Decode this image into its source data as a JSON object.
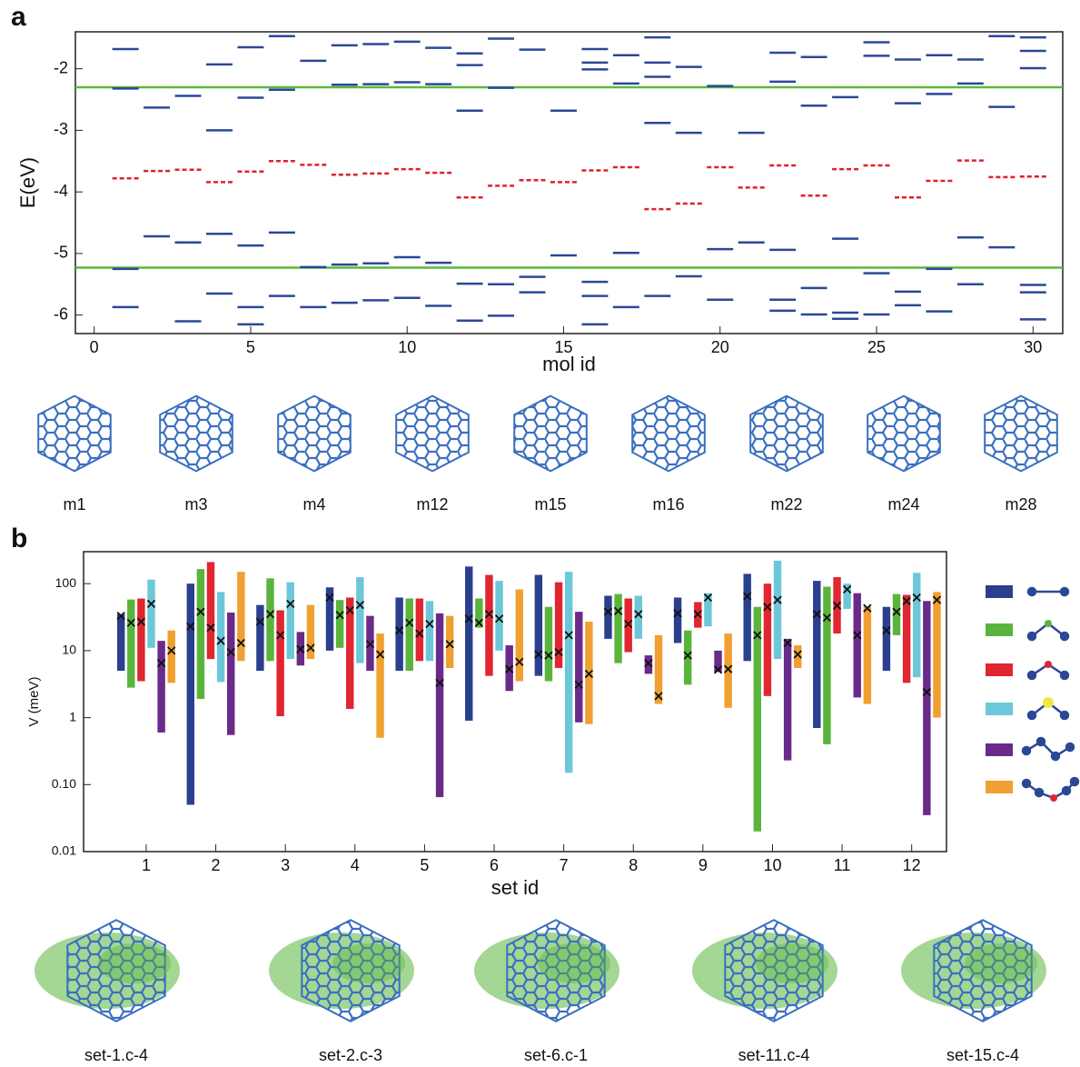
{
  "panel_labels": [
    "a",
    "b"
  ],
  "chart_data": [
    {
      "type": "levels",
      "xlabel": "mol id",
      "ylabel": "E(eV)",
      "x": [
        1,
        2,
        3,
        4,
        5,
        6,
        7,
        8,
        9,
        10,
        11,
        12,
        13,
        14,
        15,
        16,
        17,
        18,
        19,
        20,
        21,
        22,
        23,
        24,
        25,
        26,
        27,
        28,
        29,
        30
      ],
      "levels": [
        [
          -1.68,
          -2.32,
          -5.25,
          -5.87
        ],
        [
          -2.63,
          -4.72
        ],
        [
          -2.44,
          -4.82,
          -6.1
        ],
        [
          -1.93,
          -3.0,
          -4.68,
          -5.65
        ],
        [
          -1.65,
          -2.47,
          -4.87,
          -5.87,
          -6.15
        ],
        [
          -1.47,
          -2.34,
          -4.66,
          -5.69
        ],
        [
          -1.87,
          -5.22,
          -5.87
        ],
        [
          -1.62,
          -2.26,
          -5.18,
          -5.8
        ],
        [
          -1.6,
          -2.25,
          -5.16,
          -5.76
        ],
        [
          -1.56,
          -2.22,
          -5.06,
          -5.72
        ],
        [
          -1.66,
          -2.25,
          -5.15,
          -5.85
        ],
        [
          -1.75,
          -1.94,
          -2.68,
          -5.49,
          -6.09
        ],
        [
          -1.51,
          -2.31,
          -5.5,
          -6.01
        ],
        [
          -1.69,
          -5.38,
          -5.63
        ],
        [
          -2.68,
          -5.03
        ],
        [
          -1.68,
          -1.9,
          -2.01,
          -5.46,
          -5.69,
          -6.15
        ],
        [
          -1.78,
          -2.24,
          -4.99,
          -5.87
        ],
        [
          -1.49,
          -1.9,
          -2.13,
          -2.88,
          -5.69
        ],
        [
          -1.97,
          -3.04,
          -5.37
        ],
        [
          -2.28,
          -4.93,
          -5.75
        ],
        [
          -3.04,
          -4.82
        ],
        [
          -1.74,
          -2.21,
          -4.94,
          -5.75,
          -5.93
        ],
        [
          -1.81,
          -2.6,
          -5.56,
          -5.99
        ],
        [
          -2.46,
          -4.76,
          -5.96,
          -6.06
        ],
        [
          -1.57,
          -1.79,
          -5.32,
          -5.99
        ],
        [
          -1.85,
          -2.56,
          -5.62,
          -5.84
        ],
        [
          -1.78,
          -2.41,
          -5.25,
          -5.94
        ],
        [
          -1.85,
          -2.24,
          -4.74,
          -5.5
        ],
        [
          -1.47,
          -2.62,
          -4.9
        ],
        [
          -1.49,
          -1.71,
          -1.99,
          -5.51,
          -5.63,
          -6.07
        ]
      ],
      "levels_color": "#2b4896",
      "midgap": [
        -3.78,
        -3.66,
        -3.64,
        -3.84,
        -3.67,
        -3.5,
        -3.56,
        -3.72,
        -3.7,
        -3.63,
        -3.69,
        -4.09,
        -3.9,
        -3.81,
        -3.84,
        -3.65,
        -3.6,
        -4.28,
        -4.19,
        -3.6,
        -3.93,
        -3.57,
        -4.06,
        -3.63,
        -3.57,
        -4.09,
        -3.82,
        -3.49,
        -3.76,
        -3.75
      ],
      "midgap_color": "#e0202a",
      "hlines": [
        -2.3,
        -5.23
      ],
      "hline_color": "#5cb83c",
      "xlim": [
        -0.6,
        30.95
      ],
      "xticks": [
        0,
        5,
        10,
        15,
        20,
        25,
        30
      ],
      "ylim": [
        -6.3,
        -1.4
      ],
      "yticks": [
        -6,
        -5,
        -4,
        -3,
        -2
      ]
    },
    {
      "type": "range-bar",
      "xlabel": "set id",
      "ylabel": "V (meV)",
      "log_y": true,
      "x": [
        1,
        2,
        3,
        4,
        5,
        6,
        7,
        8,
        9,
        10,
        11,
        12
      ],
      "series": [
        {
          "color": "#2b3f8f",
          "low": [
            5,
            0.05,
            5,
            10,
            5,
            0.9,
            4.2,
            15,
            13,
            7,
            0.7,
            5
          ],
          "high": [
            35,
            100,
            48,
            88,
            62,
            180,
            135,
            66,
            62,
            140,
            110,
            45
          ],
          "values": [
            33,
            23,
            27,
            62,
            20,
            30,
            8.8,
            38,
            36,
            65,
            35,
            20
          ]
        },
        {
          "color": "#5ab43c",
          "low": [
            2.8,
            1.9,
            7,
            11,
            5,
            22,
            3.5,
            6.5,
            3.1,
            0.02,
            0.4,
            17
          ],
          "high": [
            58,
            165,
            120,
            57,
            60,
            60,
            45,
            70,
            20,
            45,
            90,
            70
          ],
          "values": [
            26,
            38,
            35,
            34,
            26,
            26,
            8.5,
            39,
            8.5,
            17,
            31,
            38
          ]
        },
        {
          "color": "#e02630",
          "low": [
            3.5,
            7.5,
            1.05,
            1.35,
            7,
            4.2,
            5.5,
            9.5,
            22,
            2.1,
            18,
            3.3
          ],
          "high": [
            60,
            210,
            40,
            62,
            60,
            135,
            105,
            60,
            53,
            100,
            125,
            68
          ],
          "values": [
            27,
            22,
            17,
            40,
            18,
            35,
            9.5,
            25,
            35,
            45,
            47,
            55
          ]
        },
        {
          "color": "#6cc8d8",
          "low": [
            11,
            3.4,
            7.5,
            6.5,
            7,
            10,
            0.15,
            15,
            23,
            7.5,
            42,
            4
          ],
          "high": [
            115,
            75,
            105,
            125,
            55,
            110,
            150,
            66,
            72,
            220,
            100,
            145
          ],
          "values": [
            50,
            14,
            50,
            48,
            25,
            30,
            17,
            35,
            62,
            57,
            82,
            62
          ]
        },
        {
          "color": "#6a2a8a",
          "low": [
            0.6,
            0.55,
            6,
            5,
            0.065,
            2.5,
            0.85,
            4.5,
            4.8,
            0.23,
            2,
            0.035
          ],
          "high": [
            14,
            37,
            19,
            33,
            36,
            12,
            38,
            8.5,
            10,
            15,
            72,
            55
          ],
          "values": [
            6.5,
            9.5,
            10.5,
            12.5,
            3.3,
            5.3,
            3.1,
            6.5,
            5.2,
            13,
            17,
            2.4
          ]
        },
        {
          "color": "#f0a030",
          "low": [
            3.3,
            7,
            7.5,
            0.5,
            5.5,
            3.5,
            0.8,
            1.6,
            1.4,
            5.5,
            1.6,
            1
          ],
          "high": [
            20,
            150,
            48,
            18,
            33,
            82,
            27,
            17,
            18,
            12,
            45,
            75
          ],
          "values": [
            10,
            13,
            11,
            8.8,
            12.5,
            6.8,
            4.5,
            2.1,
            5.3,
            8.8,
            43,
            57
          ]
        }
      ],
      "xlim": [
        0.1,
        12.5
      ],
      "xticks": [
        1,
        2,
        3,
        4,
        5,
        6,
        7,
        8,
        9,
        10,
        11,
        12
      ],
      "ylim": [
        0.01,
        300
      ],
      "yticks": [
        0.01,
        {
          "value": 0.1,
          "label": "0.10"
        },
        1,
        10,
        100
      ]
    }
  ],
  "molecule_labels": [
    "m1",
    "m3",
    "m4",
    "m12",
    "m15",
    "m16",
    "m22",
    "m24",
    "m28"
  ],
  "orbital_labels": [
    "set-1.c-4",
    "set-2.c-3",
    "set-6.c-1",
    "set-11.c-4",
    "set-15.c-4"
  ]
}
